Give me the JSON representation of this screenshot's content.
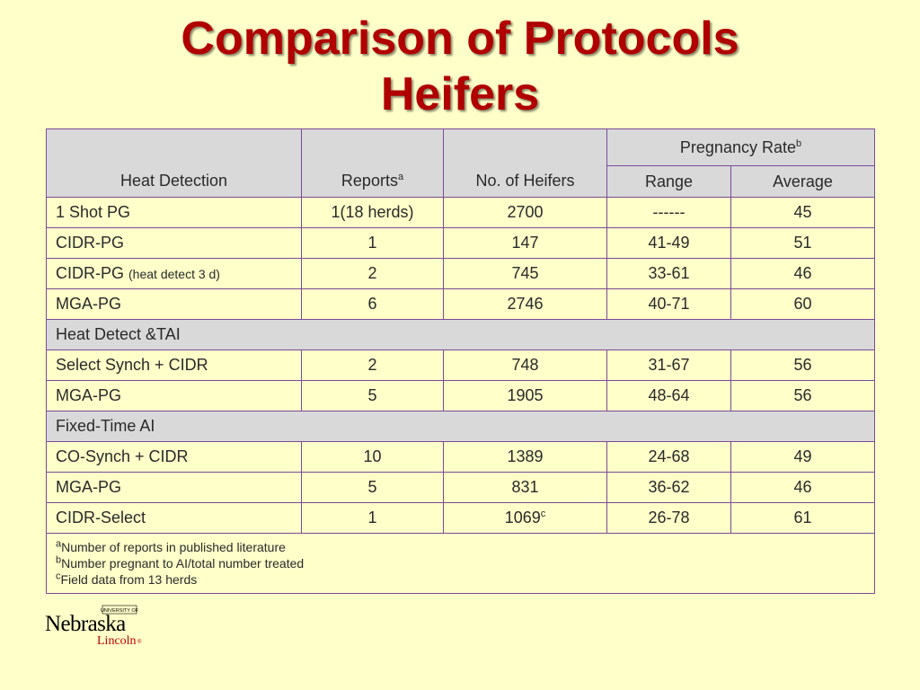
{
  "title_line1": "Comparison of Protocols",
  "title_line2": "Heifers",
  "table": {
    "header": {
      "col1": "Heat Detection",
      "col2": "Reports",
      "col2_sup": "a",
      "col3": "No. of Heifers",
      "group": "Pregnancy Rate",
      "group_sup": "b",
      "col4": "Range",
      "col5": "Average"
    },
    "group1_rows": [
      {
        "name": "1 Shot PG",
        "reports": "1(18 herds)",
        "heifers": "2700",
        "range": "------",
        "average": "45"
      },
      {
        "name": "CIDR-PG",
        "reports": "1",
        "heifers": "147",
        "range": "41-49",
        "average": "51"
      },
      {
        "name": "CIDR-PG",
        "name_note": "(heat detect 3 d)",
        "reports": "2",
        "heifers": "745",
        "range": "33-61",
        "average": "46"
      },
      {
        "name": "MGA-PG",
        "reports": "6",
        "heifers": "2746",
        "range": "40-71",
        "average": "60"
      }
    ],
    "section2": "Heat Detect &TAI",
    "group2_rows": [
      {
        "name": "Select Synch + CIDR",
        "reports": "2",
        "heifers": "748",
        "range": "31-67",
        "average": "56"
      },
      {
        "name": "MGA-PG",
        "reports": "5",
        "heifers": "1905",
        "range": "48-64",
        "average": "56"
      }
    ],
    "section3": "Fixed-Time AI",
    "group3_rows": [
      {
        "name": "CO-Synch + CIDR",
        "reports": "10",
        "heifers": "1389",
        "range": "24-68",
        "average": "49"
      },
      {
        "name": "MGA-PG",
        "reports": "5",
        "heifers": "831",
        "range": "36-62",
        "average": "46"
      },
      {
        "name": "CIDR-Select",
        "reports": "1",
        "heifers": "1069",
        "heifers_sup": "c",
        "range": "26-78",
        "average": "61"
      }
    ],
    "footnotes": [
      {
        "mark": "a",
        "text": "Number of reports in published literature"
      },
      {
        "mark": "b",
        "text": "Number pregnant to AI/total number treated"
      },
      {
        "mark": "c",
        "text": "Field data from 13 herds"
      }
    ]
  },
  "logo": {
    "university": "UNIVERSITY OF",
    "name": "Nebraska",
    "campus": "Lincoln",
    "mark": "®"
  }
}
